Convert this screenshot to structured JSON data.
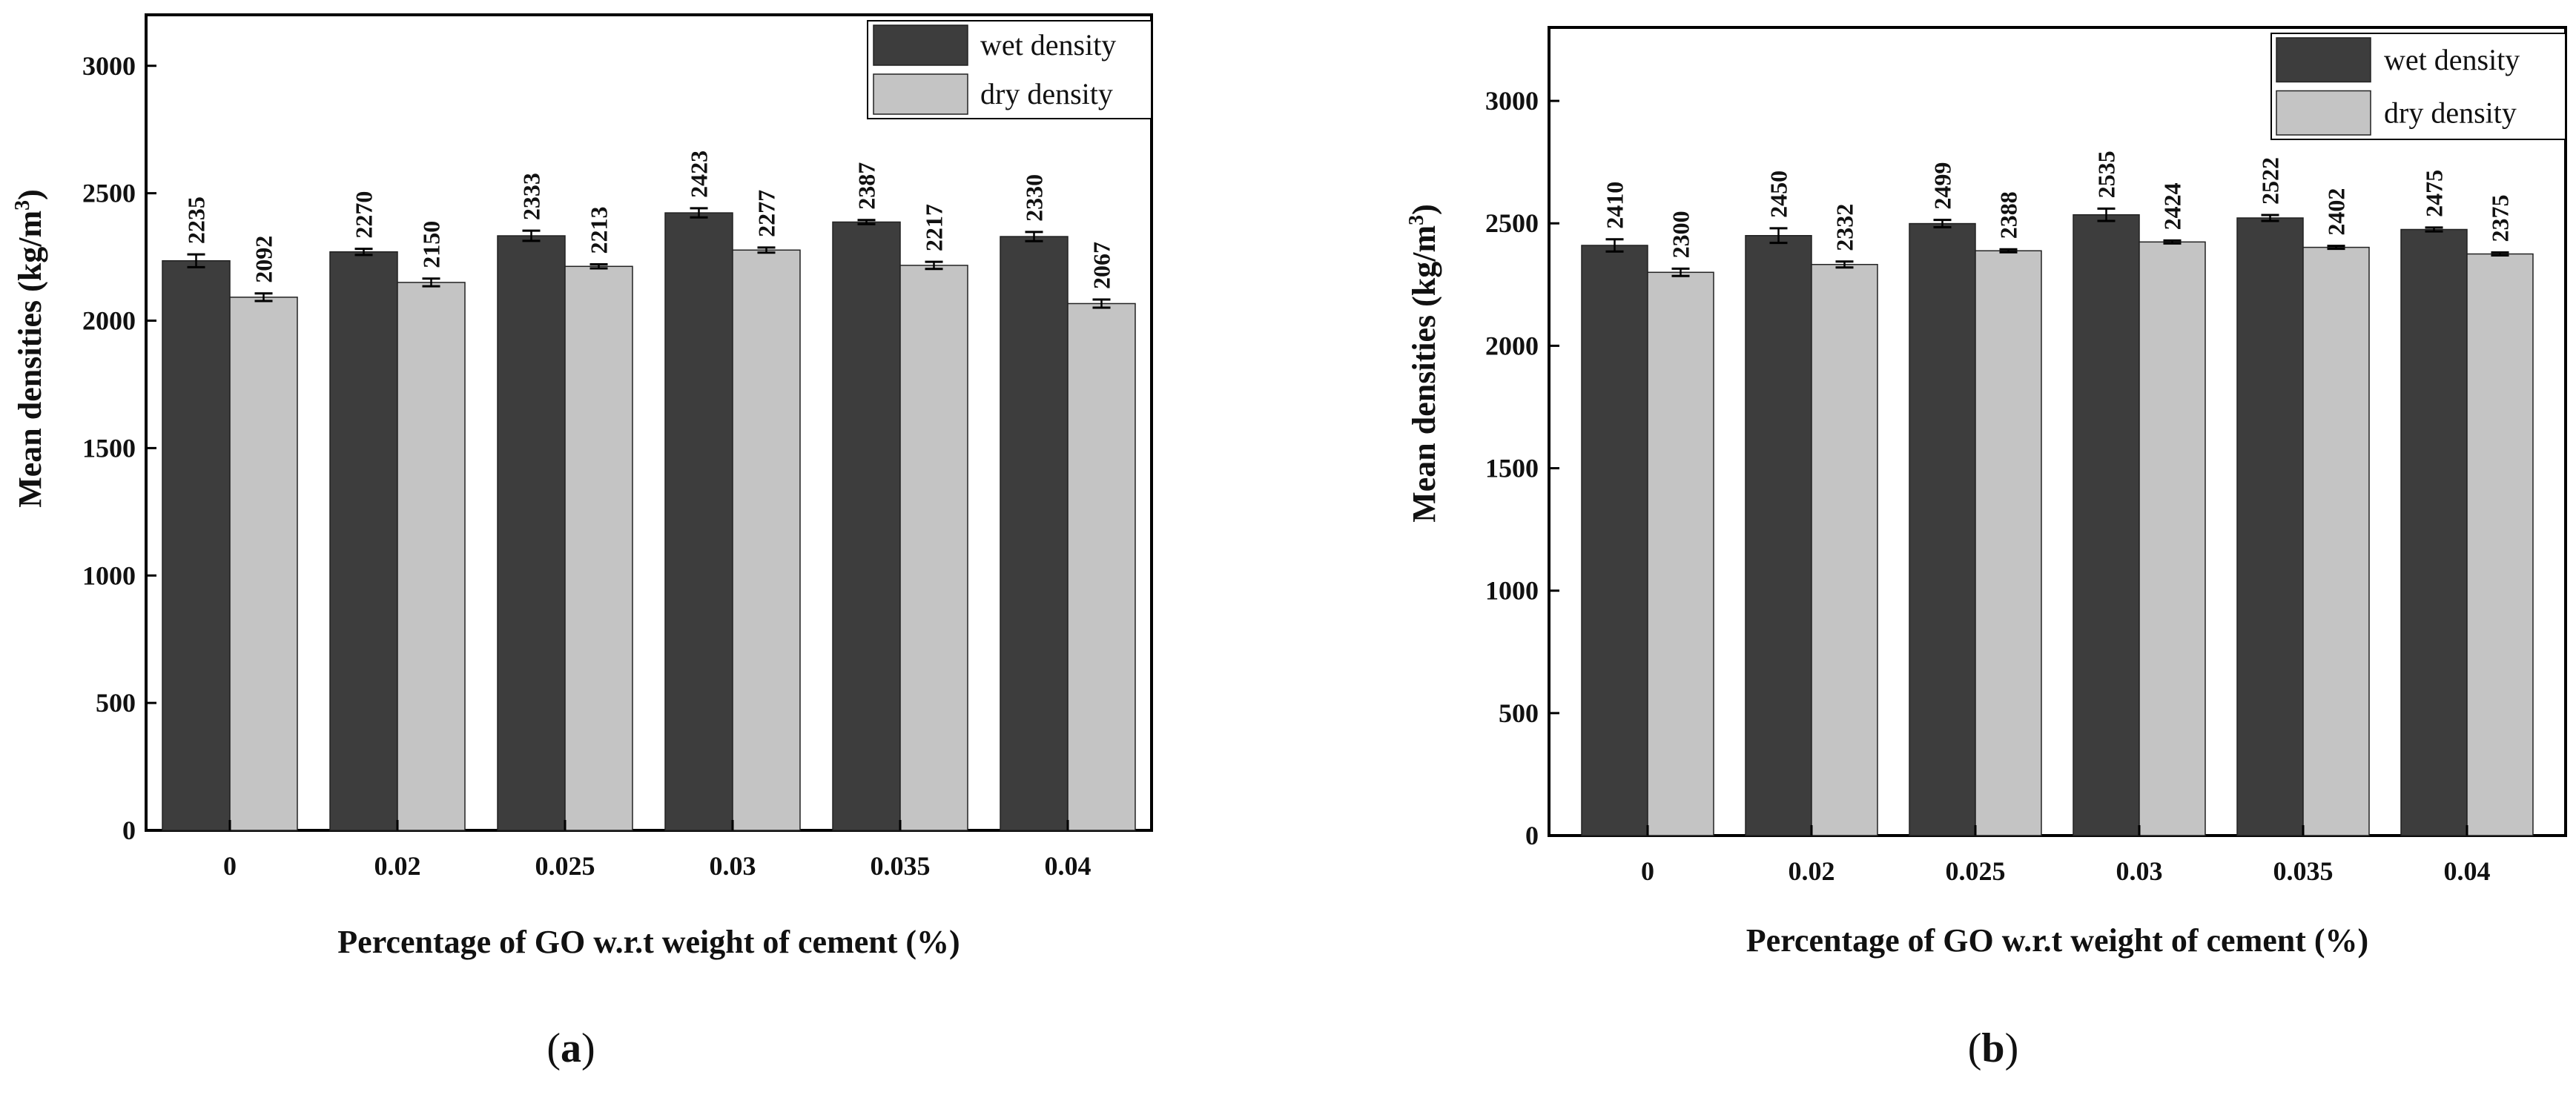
{
  "chart_data": [
    {
      "type": "bar",
      "panel": "a",
      "categories": [
        "0",
        "0.02",
        "0.025",
        "0.03",
        "0.035",
        "0.04"
      ],
      "series": [
        {
          "name": "wet density",
          "color": "#3d3d3d",
          "values": [
            2235,
            2270,
            2333,
            2423,
            2387,
            2330
          ],
          "errors": [
            25,
            12,
            20,
            18,
            8,
            18
          ]
        },
        {
          "name": "dry density",
          "color": "#c4c4c4",
          "values": [
            2092,
            2150,
            2213,
            2277,
            2217,
            2067
          ],
          "errors": [
            15,
            15,
            8,
            10,
            14,
            16
          ]
        }
      ],
      "data_labels": [
        [
          "2235",
          "2270",
          "2333",
          "2423",
          "2387",
          "2330"
        ],
        [
          "2092",
          "2150",
          "2213",
          "2277",
          "2217",
          "2067"
        ]
      ],
      "yticks": [
        "0",
        "500",
        "1000",
        "1500",
        "2000",
        "2500",
        "3000"
      ],
      "ylim": [
        0,
        3200
      ],
      "xlabel": "Percentage of GO w.r.t weight of cement (%)",
      "ylabel_main": "Mean densities (kg/m",
      "ylabel_sup": "3",
      "ylabel_end": ")",
      "legend_position": "top-right",
      "caption_open": "(",
      "caption_letter": "a",
      "caption_close": ")"
    },
    {
      "type": "bar",
      "panel": "b",
      "categories": [
        "0",
        "0.02",
        "0.025",
        "0.03",
        "0.035",
        "0.04"
      ],
      "series": [
        {
          "name": "wet density",
          "color": "#3d3d3d",
          "values": [
            2410,
            2450,
            2499,
            2535,
            2522,
            2475
          ],
          "errors": [
            25,
            30,
            15,
            25,
            12,
            8
          ]
        },
        {
          "name": "dry density",
          "color": "#c4c4c4",
          "values": [
            2300,
            2332,
            2388,
            2424,
            2402,
            2375
          ],
          "errors": [
            15,
            12,
            6,
            6,
            6,
            6
          ]
        }
      ],
      "data_labels": [
        [
          "2410",
          "2450",
          "2499",
          "2535",
          "2522",
          "2475"
        ],
        [
          "2300",
          "2332",
          "2388",
          "2424",
          "2402",
          "2375"
        ]
      ],
      "yticks": [
        "0",
        "500",
        "1000",
        "1500",
        "2000",
        "2500",
        "3000"
      ],
      "ylim": [
        0,
        3300
      ],
      "xlabel": "Percentage of GO w.r.t weight of cement (%)",
      "ylabel_main": "Mean densities (kg/m",
      "ylabel_sup": "3",
      "ylabel_end": ")",
      "legend_position": "top-right",
      "caption_open": "(",
      "caption_letter": "b",
      "caption_close": ")"
    }
  ]
}
